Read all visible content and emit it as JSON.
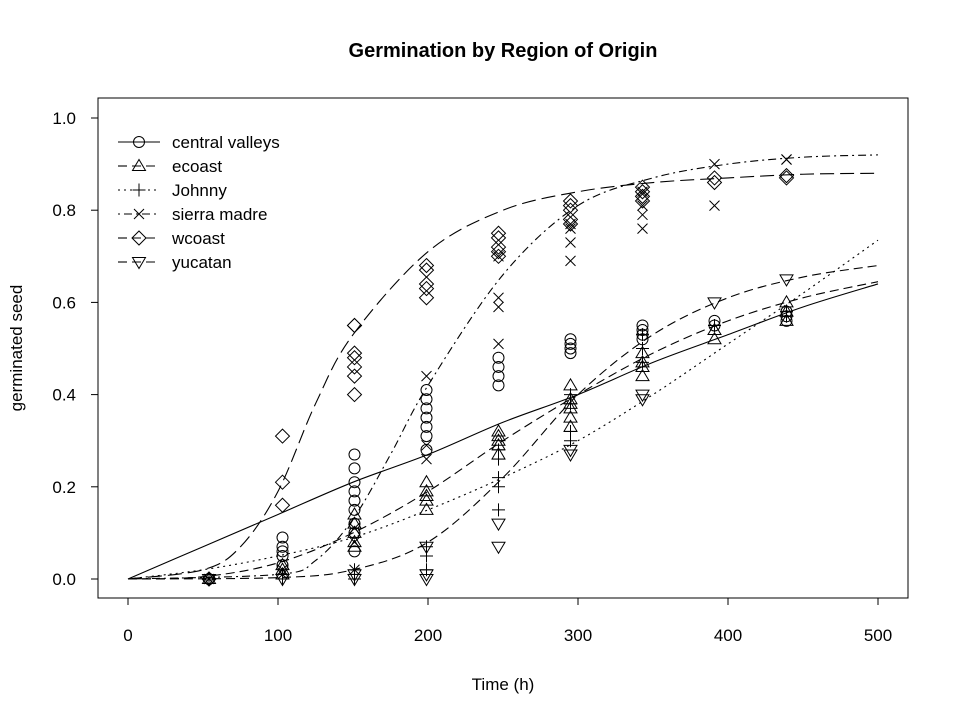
{
  "chart_data": {
    "type": "scatter",
    "title": "Germination by Region of Origin",
    "xlabel": "Time (h)",
    "ylabel": "germinated seed",
    "xlim": [
      0,
      500
    ],
    "ylim": [
      0,
      1.0
    ],
    "x_ticks": [
      "0",
      "100",
      "200",
      "300",
      "400",
      "500"
    ],
    "y_ticks": [
      "0.0",
      "0.2",
      "0.4",
      "0.6",
      "0.8",
      "1.0"
    ],
    "grid": false,
    "legend_position": "top-left",
    "legend_entries": [
      "central valleys",
      "ecoast",
      "Johnny",
      "sierra madre",
      "wcoast",
      "yucatan"
    ],
    "series": [
      {
        "name": "central valleys",
        "marker": "circle",
        "line_style": "solid",
        "curve": [
          [
            0,
            0.0
          ],
          [
            50,
            0.07
          ],
          [
            100,
            0.14
          ],
          [
            150,
            0.21
          ],
          [
            200,
            0.27
          ],
          [
            250,
            0.34
          ],
          [
            300,
            0.4
          ],
          [
            350,
            0.47
          ],
          [
            400,
            0.53
          ],
          [
            450,
            0.59
          ],
          [
            500,
            0.64
          ]
        ],
        "points": [
          [
            54,
            0.0
          ],
          [
            103,
            0.03
          ],
          [
            103,
            0.05
          ],
          [
            103,
            0.06
          ],
          [
            103,
            0.07
          ],
          [
            103,
            0.09
          ],
          [
            151,
            0.06
          ],
          [
            151,
            0.1
          ],
          [
            151,
            0.12
          ],
          [
            151,
            0.15
          ],
          [
            151,
            0.17
          ],
          [
            151,
            0.19
          ],
          [
            151,
            0.21
          ],
          [
            151,
            0.24
          ],
          [
            151,
            0.27
          ],
          [
            199,
            0.28
          ],
          [
            199,
            0.31
          ],
          [
            199,
            0.33
          ],
          [
            199,
            0.35
          ],
          [
            199,
            0.37
          ],
          [
            199,
            0.39
          ],
          [
            199,
            0.41
          ],
          [
            247,
            0.42
          ],
          [
            247,
            0.44
          ],
          [
            247,
            0.46
          ],
          [
            247,
            0.48
          ],
          [
            295,
            0.49
          ],
          [
            295,
            0.5
          ],
          [
            295,
            0.51
          ],
          [
            295,
            0.52
          ],
          [
            343,
            0.52
          ],
          [
            343,
            0.53
          ],
          [
            343,
            0.54
          ],
          [
            343,
            0.55
          ],
          [
            391,
            0.55
          ],
          [
            391,
            0.56
          ],
          [
            439,
            0.56
          ],
          [
            439,
            0.57
          ],
          [
            439,
            0.58
          ]
        ]
      },
      {
        "name": "ecoast",
        "marker": "triangle-up",
        "line_style": "dashed",
        "curve": [
          [
            0,
            0.0
          ],
          [
            50,
            0.005
          ],
          [
            100,
            0.035
          ],
          [
            150,
            0.1
          ],
          [
            200,
            0.19
          ],
          [
            250,
            0.3
          ],
          [
            300,
            0.4
          ],
          [
            350,
            0.49
          ],
          [
            400,
            0.56
          ],
          [
            450,
            0.61
          ],
          [
            500,
            0.645
          ]
        ],
        "points": [
          [
            54,
            0.0
          ],
          [
            103,
            0.01
          ],
          [
            103,
            0.02
          ],
          [
            103,
            0.03
          ],
          [
            151,
            0.07
          ],
          [
            151,
            0.08
          ],
          [
            151,
            0.1
          ],
          [
            151,
            0.12
          ],
          [
            151,
            0.14
          ],
          [
            199,
            0.15
          ],
          [
            199,
            0.17
          ],
          [
            199,
            0.18
          ],
          [
            199,
            0.19
          ],
          [
            199,
            0.21
          ],
          [
            247,
            0.27
          ],
          [
            247,
            0.29
          ],
          [
            247,
            0.3
          ],
          [
            247,
            0.31
          ],
          [
            247,
            0.32
          ],
          [
            295,
            0.33
          ],
          [
            295,
            0.35
          ],
          [
            295,
            0.37
          ],
          [
            295,
            0.38
          ],
          [
            295,
            0.39
          ],
          [
            295,
            0.42
          ],
          [
            343,
            0.44
          ],
          [
            343,
            0.46
          ],
          [
            343,
            0.47
          ],
          [
            343,
            0.49
          ],
          [
            391,
            0.52
          ],
          [
            391,
            0.54
          ],
          [
            439,
            0.56
          ],
          [
            439,
            0.58
          ],
          [
            439,
            0.6
          ]
        ]
      },
      {
        "name": "Johnny",
        "marker": "plus",
        "line_style": "dotted",
        "curve": [
          [
            0,
            0.0
          ],
          [
            50,
            0.02
          ],
          [
            100,
            0.05
          ],
          [
            150,
            0.09
          ],
          [
            200,
            0.15
          ],
          [
            250,
            0.22
          ],
          [
            300,
            0.3
          ],
          [
            350,
            0.4
          ],
          [
            400,
            0.51
          ],
          [
            450,
            0.62
          ],
          [
            500,
            0.735
          ]
        ],
        "points": [
          [
            54,
            0.0
          ],
          [
            103,
            0.0
          ],
          [
            103,
            0.01
          ],
          [
            151,
            0.0
          ],
          [
            151,
            0.01
          ],
          [
            151,
            0.02
          ],
          [
            199,
            0.02
          ],
          [
            199,
            0.05
          ],
          [
            199,
            0.07
          ],
          [
            247,
            0.15
          ],
          [
            247,
            0.2
          ],
          [
            247,
            0.22
          ],
          [
            247,
            0.26
          ],
          [
            247,
            0.28
          ],
          [
            295,
            0.3
          ],
          [
            295,
            0.32
          ],
          [
            295,
            0.38
          ],
          [
            295,
            0.4
          ],
          [
            343,
            0.47
          ],
          [
            343,
            0.5
          ],
          [
            343,
            0.53
          ],
          [
            391,
            0.55
          ],
          [
            439,
            0.57
          ],
          [
            439,
            0.58
          ]
        ]
      },
      {
        "name": "sierra madre",
        "marker": "cross",
        "line_style": "dot-dash",
        "curve": [
          [
            0,
            0.0
          ],
          [
            100,
            0.01
          ],
          [
            125,
            0.04
          ],
          [
            150,
            0.13
          ],
          [
            175,
            0.27
          ],
          [
            200,
            0.42
          ],
          [
            250,
            0.66
          ],
          [
            300,
            0.81
          ],
          [
            350,
            0.87
          ],
          [
            400,
            0.9
          ],
          [
            450,
            0.915
          ],
          [
            500,
            0.92
          ]
        ],
        "points": [
          [
            54,
            0.0
          ],
          [
            103,
            0.01
          ],
          [
            103,
            0.02
          ],
          [
            151,
            0.02
          ],
          [
            151,
            0.08
          ],
          [
            151,
            0.11
          ],
          [
            199,
            0.26
          ],
          [
            199,
            0.29
          ],
          [
            199,
            0.44
          ],
          [
            247,
            0.51
          ],
          [
            247,
            0.59
          ],
          [
            247,
            0.61
          ],
          [
            247,
            0.7
          ],
          [
            295,
            0.69
          ],
          [
            295,
            0.73
          ],
          [
            295,
            0.76
          ],
          [
            295,
            0.77
          ],
          [
            343,
            0.76
          ],
          [
            343,
            0.79
          ],
          [
            343,
            0.81
          ],
          [
            343,
            0.84
          ],
          [
            391,
            0.81
          ],
          [
            391,
            0.9
          ],
          [
            439,
            0.91
          ],
          [
            439,
            0.91
          ]
        ]
      },
      {
        "name": "wcoast",
        "marker": "diamond",
        "line_style": "long-dash",
        "curve": [
          [
            0,
            0.0
          ],
          [
            50,
            0.02
          ],
          [
            75,
            0.07
          ],
          [
            100,
            0.19
          ],
          [
            125,
            0.38
          ],
          [
            150,
            0.53
          ],
          [
            200,
            0.71
          ],
          [
            250,
            0.8
          ],
          [
            300,
            0.84
          ],
          [
            350,
            0.86
          ],
          [
            400,
            0.87
          ],
          [
            450,
            0.878
          ],
          [
            500,
            0.88
          ]
        ],
        "points": [
          [
            54,
            0.0
          ],
          [
            103,
            0.16
          ],
          [
            103,
            0.21
          ],
          [
            103,
            0.31
          ],
          [
            151,
            0.4
          ],
          [
            151,
            0.44
          ],
          [
            151,
            0.46
          ],
          [
            151,
            0.48
          ],
          [
            151,
            0.49
          ],
          [
            151,
            0.55
          ],
          [
            151,
            0.55
          ],
          [
            199,
            0.61
          ],
          [
            199,
            0.63
          ],
          [
            199,
            0.64
          ],
          [
            199,
            0.67
          ],
          [
            199,
            0.68
          ],
          [
            247,
            0.7
          ],
          [
            247,
            0.71
          ],
          [
            247,
            0.72
          ],
          [
            247,
            0.74
          ],
          [
            247,
            0.75
          ],
          [
            295,
            0.77
          ],
          [
            295,
            0.78
          ],
          [
            295,
            0.8
          ],
          [
            295,
            0.81
          ],
          [
            295,
            0.82
          ],
          [
            343,
            0.82
          ],
          [
            343,
            0.83
          ],
          [
            343,
            0.84
          ],
          [
            343,
            0.85
          ],
          [
            391,
            0.86
          ],
          [
            391,
            0.87
          ],
          [
            439,
            0.87
          ],
          [
            439,
            0.875
          ]
        ]
      },
      {
        "name": "yucatan",
        "marker": "triangle-down",
        "line_style": "dashed",
        "curve": [
          [
            0,
            0.0
          ],
          [
            100,
            0.003
          ],
          [
            150,
            0.02
          ],
          [
            200,
            0.08
          ],
          [
            250,
            0.22
          ],
          [
            300,
            0.4
          ],
          [
            350,
            0.53
          ],
          [
            400,
            0.61
          ],
          [
            450,
            0.655
          ],
          [
            500,
            0.68
          ]
        ],
        "points": [
          [
            54,
            0.0
          ],
          [
            103,
            0.0
          ],
          [
            151,
            0.0
          ],
          [
            151,
            0.01
          ],
          [
            199,
            0.0
          ],
          [
            199,
            0.01
          ],
          [
            199,
            0.07
          ],
          [
            247,
            0.07
          ],
          [
            247,
            0.12
          ],
          [
            295,
            0.27
          ],
          [
            295,
            0.28
          ],
          [
            343,
            0.39
          ],
          [
            343,
            0.4
          ],
          [
            391,
            0.6
          ],
          [
            439,
            0.65
          ]
        ]
      }
    ]
  }
}
